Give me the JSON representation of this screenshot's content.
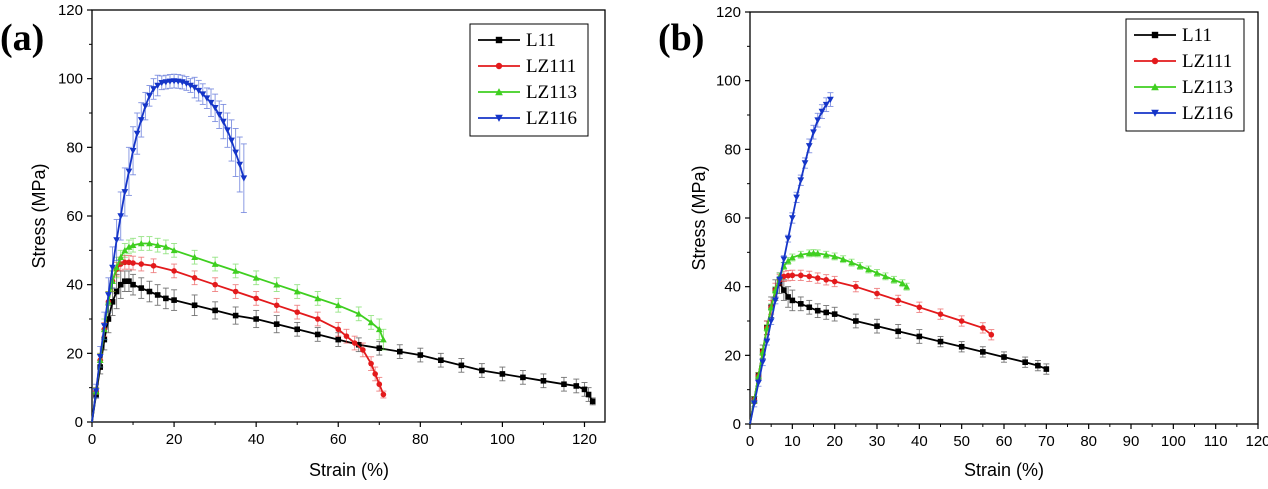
{
  "chart_data": [
    {
      "type": "line",
      "panel_label": "(a)",
      "xlabel": "Strain (%)",
      "ylabel": "Stress (MPa)",
      "xlim": [
        0,
        125
      ],
      "ylim": [
        0,
        120
      ],
      "xticks": [
        0,
        20,
        40,
        60,
        80,
        100,
        120
      ],
      "yticks": [
        0,
        20,
        40,
        60,
        80,
        100,
        120
      ],
      "error_bars": true,
      "legend_position": "top-right",
      "series": [
        {
          "name": "L11",
          "color": "#000000",
          "marker": "square",
          "x": [
            0,
            1,
            2,
            3,
            4,
            5,
            6,
            7,
            8,
            9,
            10,
            12,
            14,
            16,
            18,
            20,
            25,
            30,
            35,
            40,
            45,
            50,
            55,
            60,
            65,
            70,
            75,
            80,
            85,
            90,
            95,
            100,
            105,
            110,
            115,
            118,
            120,
            121,
            122
          ],
          "y": [
            0,
            8,
            16,
            24,
            30,
            35,
            38,
            40,
            41,
            41,
            40,
            39,
            38,
            37,
            36,
            35.5,
            34,
            32.5,
            31,
            30,
            28.5,
            27,
            25.5,
            24,
            22.5,
            21.5,
            20.5,
            19.5,
            18,
            16.5,
            15,
            14,
            13,
            12,
            11,
            10.5,
            9.5,
            8,
            6
          ],
          "err": [
            0,
            1,
            2,
            3,
            4,
            4,
            5,
            4,
            3,
            3,
            3,
            3,
            3,
            3,
            3,
            3,
            3,
            2.5,
            2.5,
            2.5,
            2.5,
            2,
            2,
            2,
            2,
            2,
            2,
            2,
            2,
            2,
            2,
            2,
            2,
            2,
            2,
            2,
            2,
            2,
            1
          ]
        },
        {
          "name": "LZ111",
          "color": "#e31a1c",
          "marker": "circle",
          "x": [
            0,
            1,
            2,
            3,
            4,
            5,
            6,
            7,
            8,
            9,
            10,
            12,
            15,
            20,
            25,
            30,
            35,
            40,
            45,
            50,
            55,
            60,
            62,
            64,
            66,
            68,
            69,
            70,
            71
          ],
          "y": [
            0,
            9,
            18,
            27,
            35,
            41,
            44.5,
            46,
            46.5,
            46.5,
            46.3,
            46,
            45.5,
            44,
            42,
            40,
            38,
            36,
            34,
            32,
            30,
            27,
            25,
            23,
            21,
            17,
            14,
            11,
            8
          ],
          "err": [
            0,
            1,
            2,
            2,
            3,
            3,
            2,
            2,
            2,
            2,
            2,
            2,
            2,
            2,
            2,
            2,
            2,
            2,
            2,
            2,
            2,
            2,
            2,
            2,
            2,
            2,
            2,
            2,
            1
          ]
        },
        {
          "name": "LZ113",
          "color": "#3fcf20",
          "marker": "triangle-up",
          "x": [
            0,
            1,
            2,
            3,
            4,
            5,
            6,
            7,
            8,
            9,
            10,
            12,
            14,
            16,
            18,
            20,
            25,
            30,
            35,
            40,
            45,
            50,
            55,
            60,
            65,
            68,
            70,
            71
          ],
          "y": [
            0,
            9,
            18,
            27,
            35,
            41,
            45,
            48,
            50,
            51,
            51.5,
            52,
            52,
            51.5,
            51,
            50,
            48,
            46,
            44,
            42,
            40,
            38,
            36,
            34,
            31.5,
            29,
            27,
            24
          ],
          "err": [
            0,
            1,
            2,
            3,
            3,
            3,
            3,
            2,
            2,
            2,
            2,
            2,
            2,
            2,
            2,
            2,
            2,
            2,
            2,
            2,
            2,
            2,
            2,
            2,
            2,
            2,
            3,
            3
          ]
        },
        {
          "name": "LZ116",
          "color": "#1535c8",
          "marker": "triangle-down",
          "x": [
            0,
            1,
            2,
            3,
            4,
            5,
            6,
            7,
            8,
            9,
            10,
            11,
            12,
            13,
            14,
            15,
            16,
            17,
            18,
            19,
            20,
            21,
            22,
            23,
            24,
            25,
            26,
            27,
            28,
            29,
            30,
            31,
            32,
            33,
            34,
            35,
            36,
            37
          ],
          "y": [
            0,
            9,
            19,
            28,
            37,
            45,
            53,
            60,
            67,
            73,
            79,
            84,
            88,
            92,
            95,
            97,
            98,
            98.8,
            99,
            99.2,
            99.3,
            99.2,
            99,
            98.6,
            98,
            97.4,
            96.5,
            95.5,
            94.3,
            93,
            91.5,
            89.5,
            87.5,
            85,
            82,
            78.5,
            75,
            71
          ],
          "err": [
            0,
            2,
            3,
            4,
            5,
            6,
            6,
            7,
            7,
            7,
            7,
            6,
            5,
            4,
            3,
            3,
            3,
            2,
            2,
            2,
            2,
            2,
            2,
            2,
            2,
            3,
            3,
            3,
            3,
            4,
            4,
            4,
            5,
            5,
            6,
            7,
            8,
            10
          ]
        }
      ]
    },
    {
      "type": "line",
      "panel_label": "(b)",
      "xlabel": "Strain (%)",
      "ylabel": "Stress (MPa)",
      "xlim": [
        0,
        120
      ],
      "ylim": [
        0,
        120
      ],
      "xticks": [
        0,
        10,
        20,
        30,
        40,
        50,
        60,
        70,
        80,
        90,
        100,
        110,
        120
      ],
      "yticks": [
        0,
        20,
        40,
        60,
        80,
        100,
        120
      ],
      "error_bars": true,
      "legend_position": "top-right",
      "series": [
        {
          "name": "L11",
          "color": "#000000",
          "marker": "square",
          "x": [
            0,
            1,
            2,
            3,
            4,
            5,
            6,
            7,
            8,
            9,
            10,
            12,
            14,
            16,
            18,
            20,
            25,
            30,
            35,
            40,
            45,
            50,
            55,
            60,
            65,
            68,
            70
          ],
          "y": [
            0,
            7,
            14,
            21,
            28,
            34,
            39,
            41,
            39,
            37,
            36,
            35,
            34,
            33,
            32.5,
            32,
            30,
            28.5,
            27,
            25.5,
            24,
            22.5,
            21,
            19.5,
            18,
            17,
            16
          ],
          "err": [
            0,
            1,
            1,
            2,
            2,
            3,
            3,
            3,
            3,
            3,
            3,
            2,
            2,
            2,
            2,
            2,
            2,
            2,
            2,
            2,
            1.5,
            1.5,
            1.5,
            1.5,
            1.5,
            1.5,
            1.5
          ]
        },
        {
          "name": "LZ111",
          "color": "#e31a1c",
          "marker": "circle",
          "x": [
            0,
            1,
            2,
            3,
            4,
            5,
            6,
            7,
            8,
            9,
            10,
            12,
            14,
            16,
            18,
            20,
            25,
            30,
            35,
            40,
            45,
            50,
            55,
            57
          ],
          "y": [
            0,
            7,
            14,
            21,
            28,
            34,
            39,
            42,
            43,
            43.2,
            43.3,
            43.3,
            43,
            42.5,
            42,
            41.5,
            40,
            38,
            36,
            34,
            32,
            30,
            28,
            26
          ],
          "err": [
            0,
            1,
            1,
            1,
            2,
            2,
            2,
            1.5,
            1.5,
            1.5,
            1.5,
            1.5,
            1.5,
            1.5,
            1.5,
            1.5,
            1.5,
            1.5,
            1.5,
            1.5,
            1.5,
            1.5,
            1.5,
            1.5
          ]
        },
        {
          "name": "LZ113",
          "color": "#3fcf20",
          "marker": "triangle-up",
          "x": [
            0,
            1,
            2,
            3,
            4,
            5,
            6,
            7,
            8,
            9,
            10,
            12,
            14,
            15,
            16,
            18,
            20,
            22,
            24,
            26,
            28,
            30,
            32,
            34,
            36,
            37
          ],
          "y": [
            0,
            7,
            14,
            21,
            28,
            34,
            39,
            43,
            46,
            47.5,
            48.5,
            49.3,
            49.7,
            49.8,
            49.7,
            49.3,
            48.8,
            48,
            47,
            46,
            45,
            44,
            43,
            42,
            41,
            40
          ],
          "err": [
            0,
            1,
            1,
            1,
            1,
            1,
            1,
            1,
            1,
            1,
            1,
            1,
            1,
            1,
            1,
            1,
            1,
            1,
            1,
            1,
            1,
            1,
            1,
            1,
            1,
            1
          ]
        },
        {
          "name": "LZ116",
          "color": "#1535c8",
          "marker": "triangle-down",
          "x": [
            0,
            1,
            2,
            3,
            4,
            5,
            6,
            7,
            8,
            9,
            10,
            11,
            12,
            13,
            14,
            15,
            16,
            17,
            18,
            19
          ],
          "y": [
            0,
            6,
            12,
            18,
            24,
            30,
            36,
            42,
            48,
            54,
            60,
            66,
            71,
            76,
            81,
            85,
            88.5,
            91,
            93,
            94.5
          ],
          "err": [
            0,
            1,
            1,
            1,
            1,
            1,
            1,
            1,
            1,
            1,
            1.5,
            1.5,
            1.5,
            1.5,
            2,
            2,
            2,
            2,
            2,
            2
          ]
        }
      ]
    }
  ]
}
